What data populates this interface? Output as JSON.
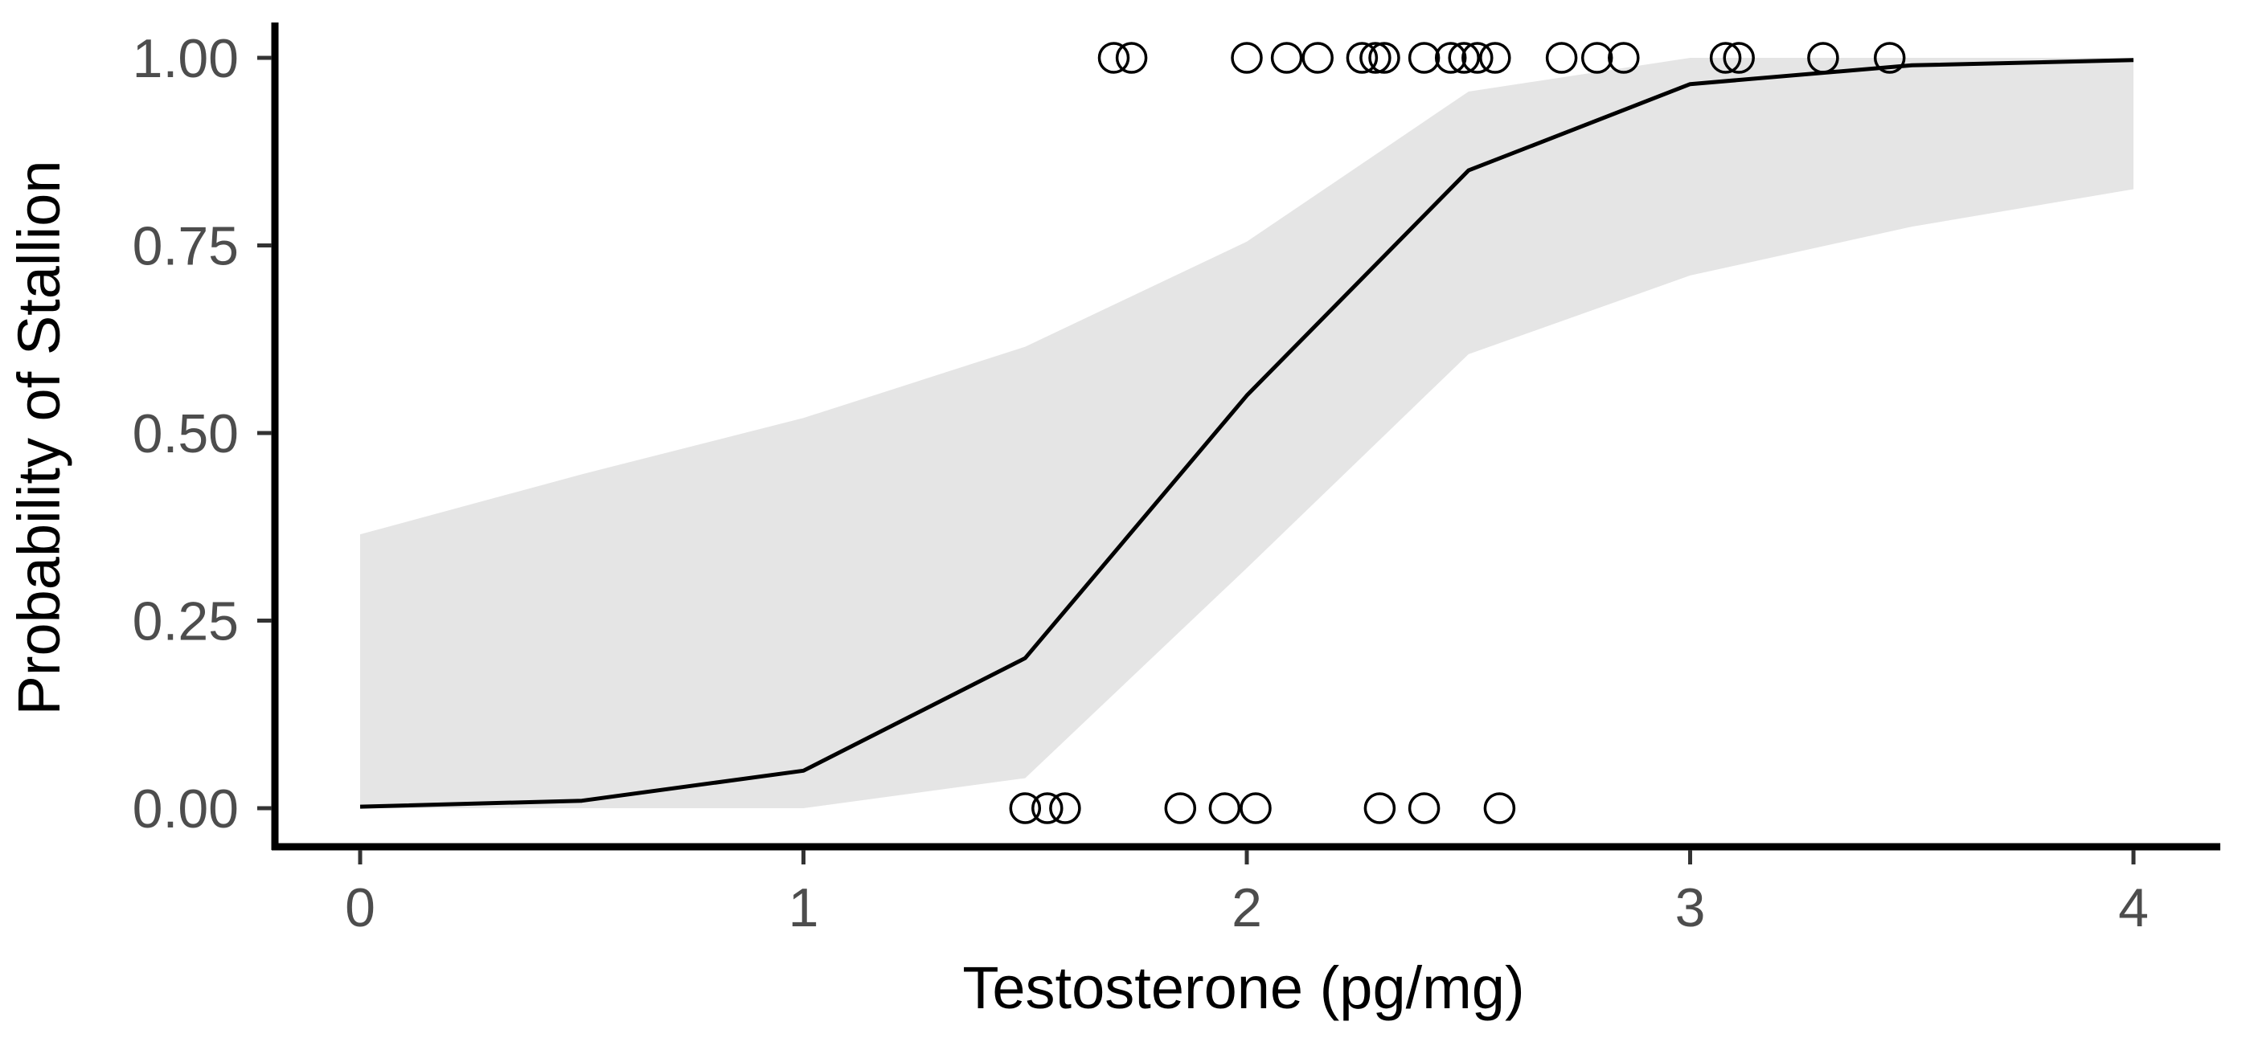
{
  "chart_data": {
    "type": "line",
    "title": "",
    "xlabel": "Testosterone (pg/mg)",
    "ylabel": "Probability of Stallion",
    "xlim": [
      -0.2,
      4.2
    ],
    "ylim": [
      -0.05,
      1.05
    ],
    "x_ticks": [
      0,
      1,
      2,
      3,
      4
    ],
    "x_tick_labels": [
      "0",
      "1",
      "2",
      "3",
      "4"
    ],
    "y_ticks": [
      0,
      0.25,
      0.5,
      0.75,
      1.0
    ],
    "y_tick_labels": [
      "0.00",
      "0.25",
      "0.50",
      "0.75",
      "1.00"
    ],
    "grid": false,
    "legend": "none",
    "series": [
      {
        "name": "fitted probability",
        "kind": "line",
        "x": [
          0,
          0.5,
          1,
          1.5,
          2,
          2.5,
          3,
          3.5,
          4
        ],
        "y": [
          0.002,
          0.01,
          0.05,
          0.2,
          0.55,
          0.85,
          0.965,
          0.99,
          0.997
        ],
        "lower": [
          0,
          0,
          0,
          0.04,
          0.32,
          0.605,
          0.71,
          0.775,
          0.825
        ],
        "upper": [
          0.365,
          0.445,
          0.52,
          0.615,
          0.755,
          0.955,
          1.0,
          1.0,
          1.0
        ],
        "line_color": "#000000",
        "band_color": "#e5e5e5"
      },
      {
        "name": "observations",
        "kind": "scatter",
        "marker": "open-circle",
        "color": "#000000",
        "points": [
          [
            1.7,
            1
          ],
          [
            1.74,
            1
          ],
          [
            2.0,
            1
          ],
          [
            2.09,
            1
          ],
          [
            2.16,
            1
          ],
          [
            2.26,
            1
          ],
          [
            2.29,
            1
          ],
          [
            2.31,
            1
          ],
          [
            2.4,
            1
          ],
          [
            2.46,
            1
          ],
          [
            2.49,
            1
          ],
          [
            2.52,
            1
          ],
          [
            2.56,
            1
          ],
          [
            2.71,
            1
          ],
          [
            2.79,
            1
          ],
          [
            2.85,
            1
          ],
          [
            3.08,
            1
          ],
          [
            3.11,
            1
          ],
          [
            3.3,
            1
          ],
          [
            3.45,
            1
          ],
          [
            1.5,
            0
          ],
          [
            1.55,
            0
          ],
          [
            1.59,
            0
          ],
          [
            1.85,
            0
          ],
          [
            1.95,
            0
          ],
          [
            2.02,
            0
          ],
          [
            2.3,
            0
          ],
          [
            2.4,
            0
          ],
          [
            2.57,
            0
          ]
        ]
      }
    ]
  }
}
